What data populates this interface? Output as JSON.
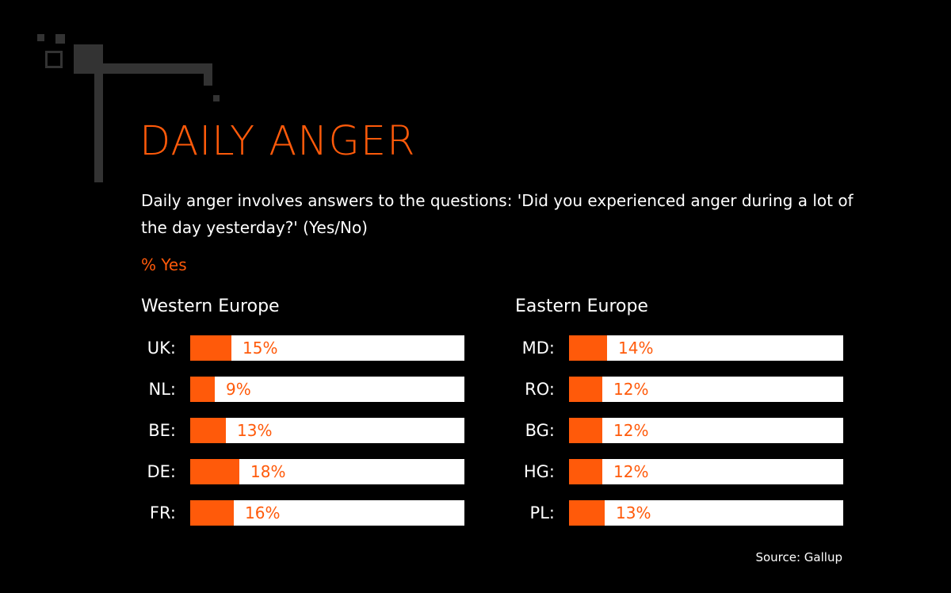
{
  "chart_data": {
    "type": "bar",
    "orientation": "horizontal",
    "title": "DAILY ANGER",
    "subtitle": "Daily anger involves answers to the questions: 'Did you experienced anger during a lot of the day yesterday?' (Yes/No)",
    "unit_label": "% Yes",
    "xlim": [
      0,
      100
    ],
    "source": "Source: Gallup",
    "groups": [
      {
        "name": "Western Europe",
        "categories": [
          "UK:",
          "NL:",
          "BE:",
          "DE:",
          "FR:"
        ],
        "values": [
          15,
          9,
          13,
          18,
          16
        ]
      },
      {
        "name": "Eastern Europe",
        "categories": [
          "MD:",
          "RO:",
          "BG:",
          "HG:",
          "PL:"
        ],
        "values": [
          14,
          12,
          12,
          12,
          13
        ]
      }
    ]
  },
  "colors": {
    "accent": "#ff5a0a",
    "background": "#000000",
    "track": "#ffffff",
    "text": "#ffffff",
    "decoration": "#333333"
  }
}
